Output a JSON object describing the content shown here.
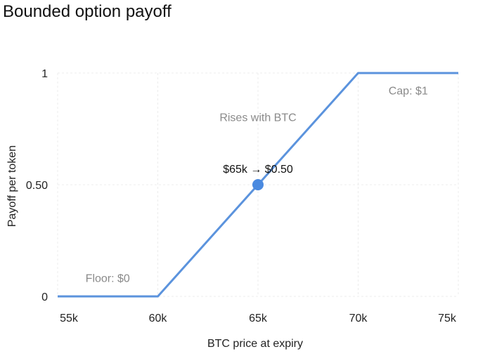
{
  "chart_data": {
    "type": "line",
    "title": "Bounded option payoff",
    "xlabel": "BTC price at expiry",
    "ylabel": "Payoff per token",
    "xlim": [
      55000,
      75000
    ],
    "ylim": [
      0,
      1
    ],
    "grid": true,
    "x_ticks": [
      {
        "value": 55000,
        "label": "55k"
      },
      {
        "value": 60000,
        "label": "60k"
      },
      {
        "value": 65000,
        "label": "65k"
      },
      {
        "value": 70000,
        "label": "70k"
      },
      {
        "value": 75000,
        "label": "75k"
      }
    ],
    "y_ticks": [
      {
        "value": 0,
        "label": "0"
      },
      {
        "value": 0.5,
        "label": "0.50"
      },
      {
        "value": 1,
        "label": "1"
      }
    ],
    "series": [
      {
        "color": "#5b93dd",
        "x": [
          55000,
          60000,
          70000,
          75000
        ],
        "y": [
          0,
          0,
          1,
          1
        ]
      }
    ],
    "highlight_point": {
      "x": 65000,
      "y": 0.5,
      "label": "$65k → $0.50",
      "color": "#4a8ae0"
    },
    "annotations": [
      {
        "text": "Floor: $0",
        "x": 57500,
        "y": 0.08
      },
      {
        "text": "Rises with BTC",
        "x": 65000,
        "y": 0.8
      },
      {
        "text": "Cap: $1",
        "x": 72500,
        "y": 0.92
      }
    ]
  }
}
